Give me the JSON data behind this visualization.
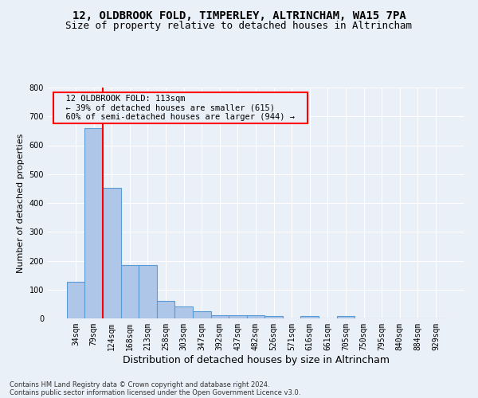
{
  "title_line1": "12, OLDBROOK FOLD, TIMPERLEY, ALTRINCHAM, WA15 7PA",
  "title_line2": "Size of property relative to detached houses in Altrincham",
  "xlabel": "Distribution of detached houses by size in Altrincham",
  "ylabel": "Number of detached properties",
  "footer_line1": "Contains HM Land Registry data © Crown copyright and database right 2024.",
  "footer_line2": "Contains public sector information licensed under the Open Government Licence v3.0.",
  "bin_labels": [
    "34sqm",
    "79sqm",
    "124sqm",
    "168sqm",
    "213sqm",
    "258sqm",
    "303sqm",
    "347sqm",
    "392sqm",
    "437sqm",
    "482sqm",
    "526sqm",
    "571sqm",
    "616sqm",
    "661sqm",
    "705sqm",
    "750sqm",
    "795sqm",
    "840sqm",
    "884sqm",
    "929sqm"
  ],
  "bar_values": [
    128,
    660,
    452,
    184,
    184,
    60,
    42,
    25,
    12,
    12,
    11,
    8,
    0,
    8,
    0,
    8,
    0,
    0,
    0,
    0,
    0
  ],
  "bar_color": "#aec6e8",
  "bar_edge_color": "#5b9bd5",
  "ylim": [
    0,
    800
  ],
  "yticks": [
    0,
    100,
    200,
    300,
    400,
    500,
    600,
    700,
    800
  ],
  "red_line_x": 1.5,
  "annotation_text_line1": "12 OLDBROOK FOLD: 113sqm",
  "annotation_text_line2": "← 39% of detached houses are smaller (615)",
  "annotation_text_line3": "60% of semi-detached houses are larger (944) →",
  "background_color": "#eaf0f8",
  "grid_color": "#ffffff",
  "title1_fontsize": 10,
  "title2_fontsize": 9,
  "ylabel_fontsize": 8,
  "xlabel_fontsize": 9,
  "tick_fontsize": 7,
  "annot_fontsize": 7.5,
  "footer_fontsize": 6
}
